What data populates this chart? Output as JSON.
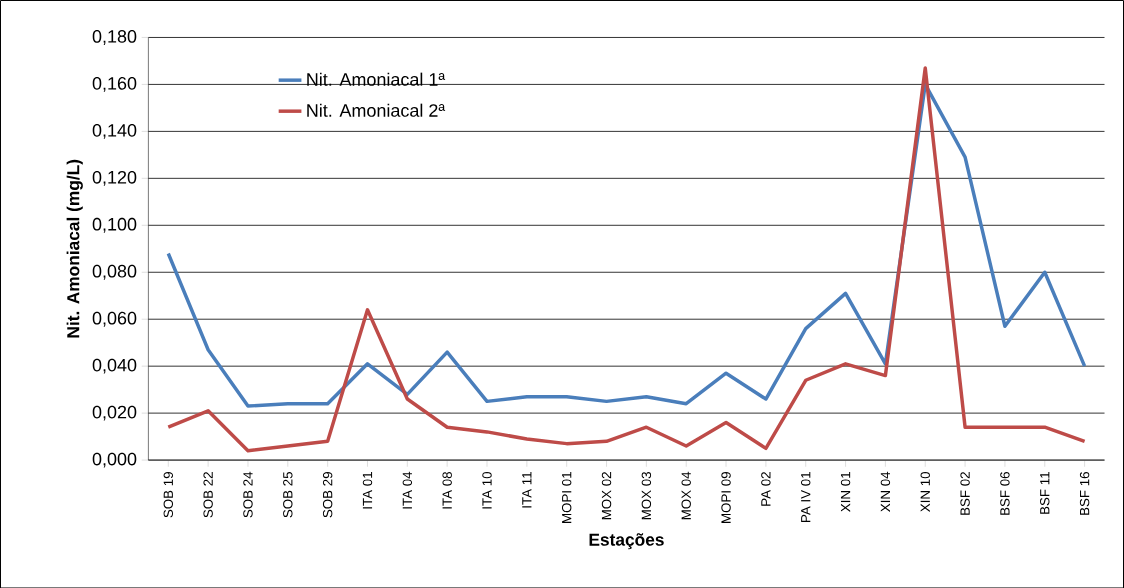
{
  "chart_data": {
    "type": "line",
    "xlabel": "Estações",
    "ylabel": "Nit. Amoniacal (mg/L)",
    "categories": [
      "SOB 19",
      "SOB 22",
      "SOB 24",
      "SOB 25",
      "SOB 29",
      "ITA 01",
      "ITA 04",
      "ITA 08",
      "ITA 10",
      "ITA 11",
      "MOPI 01",
      "MOX 02",
      "MOX 03",
      "MOX 04",
      "MOPI 09",
      "PA 02",
      "PA IV 01",
      "XIN 01",
      "XIN 04",
      "XIN 10",
      "BSF 02",
      "BSF 06",
      "BSF 11",
      "BSF 16"
    ],
    "series": [
      {
        "name": "Nit. Amoniacal 1ª",
        "color": "#4a7ebb",
        "values": [
          0.088,
          0.047,
          0.023,
          0.024,
          0.024,
          0.041,
          0.028,
          0.046,
          0.025,
          0.027,
          0.027,
          0.025,
          0.027,
          0.024,
          0.037,
          0.026,
          0.056,
          0.071,
          0.041,
          0.16,
          0.129,
          0.057,
          0.08,
          0.04
        ]
      },
      {
        "name": "Nit. Amoniacal 2ª",
        "color": "#be4b48",
        "values": [
          0.014,
          0.021,
          0.004,
          0.006,
          0.008,
          0.064,
          0.026,
          0.014,
          0.012,
          0.009,
          0.007,
          0.008,
          0.014,
          0.006,
          0.016,
          0.005,
          0.034,
          0.041,
          0.036,
          0.167,
          0.014,
          0.014,
          0.014,
          0.008
        ]
      }
    ],
    "ylim": [
      0,
      0.18
    ],
    "yticks": [
      {
        "value": 0,
        "label": "0,000"
      },
      {
        "value": 0.02,
        "label": "0,020"
      },
      {
        "value": 0.04,
        "label": "0,040"
      },
      {
        "value": 0.06,
        "label": "0,060"
      },
      {
        "value": 0.08,
        "label": "0,080"
      },
      {
        "value": 0.1,
        "label": "0,100"
      },
      {
        "value": 0.12,
        "label": "0,120"
      },
      {
        "value": 0.14,
        "label": "0,140"
      },
      {
        "value": 0.16,
        "label": "0,160"
      },
      {
        "value": 0.18,
        "label": "0,180"
      }
    ],
    "grid": "y",
    "legend": "top left"
  }
}
